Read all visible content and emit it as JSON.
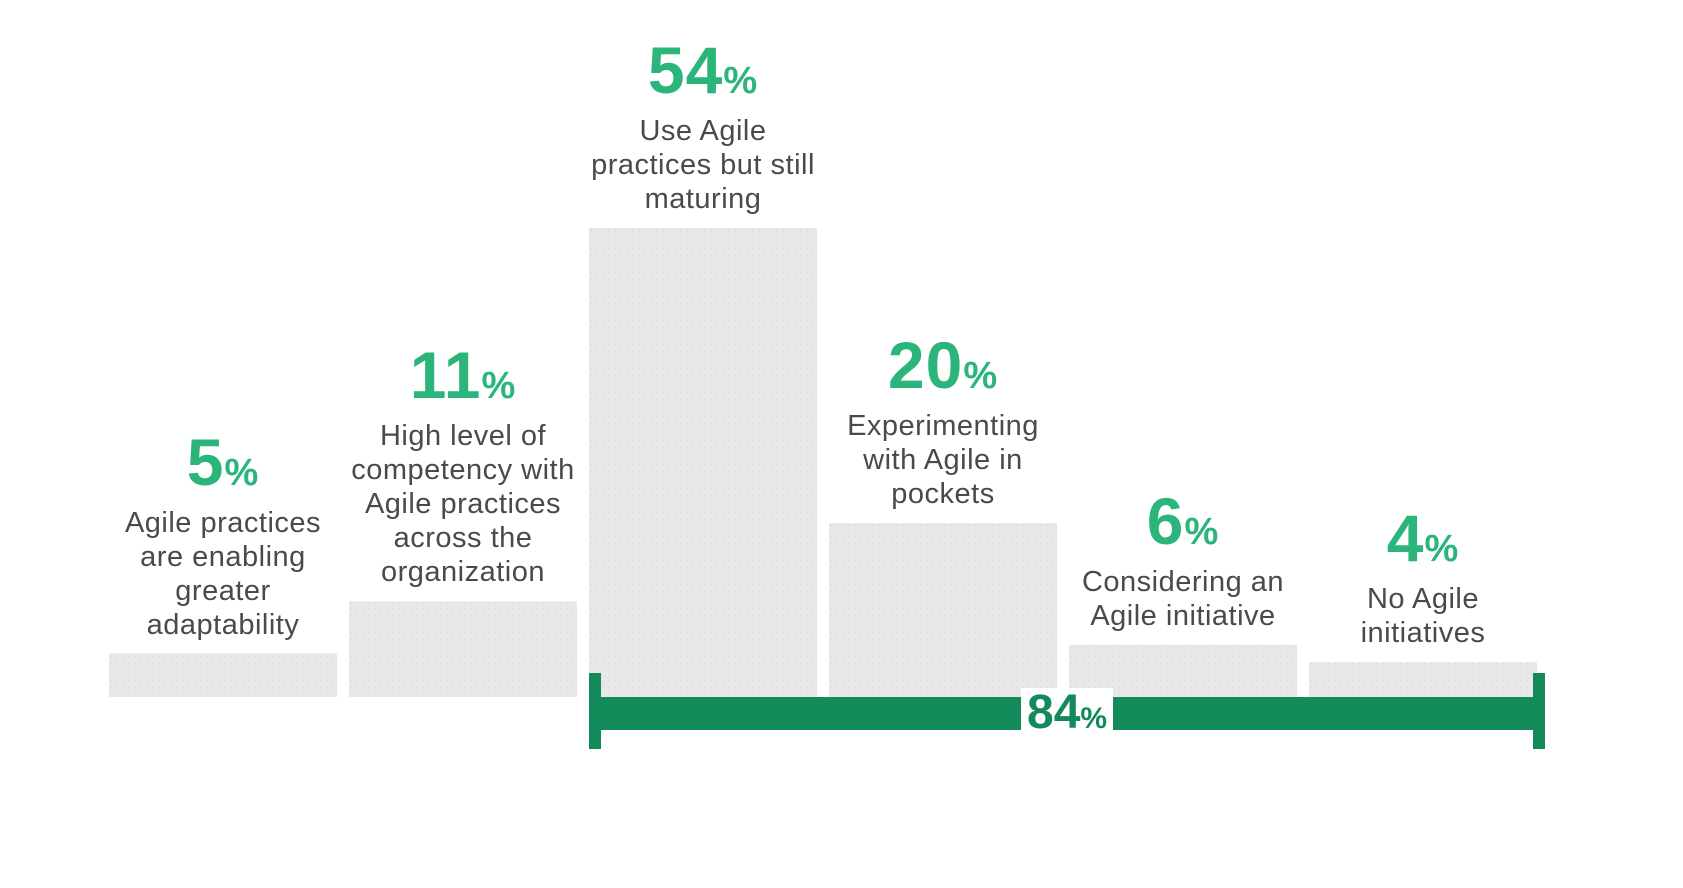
{
  "chart_data": {
    "type": "bar",
    "categories": [
      "Agile practices are enabling greater adaptability",
      "High level of competency with Agile practices across the organization",
      "Use Agile practices but still maturing",
      "Experimenting with Agile in pockets",
      "Considering an Agile initiative",
      "No Agile initiatives"
    ],
    "values": [
      5,
      11,
      54,
      20,
      6,
      4
    ],
    "value_labels": [
      "5%",
      "11%",
      "54%",
      "20%",
      "6%",
      "4%"
    ],
    "color": "#e8e8e8",
    "label_color": "#2bb57a",
    "annotation": "84%",
    "annotation_color": "#128a5a"
  }
}
